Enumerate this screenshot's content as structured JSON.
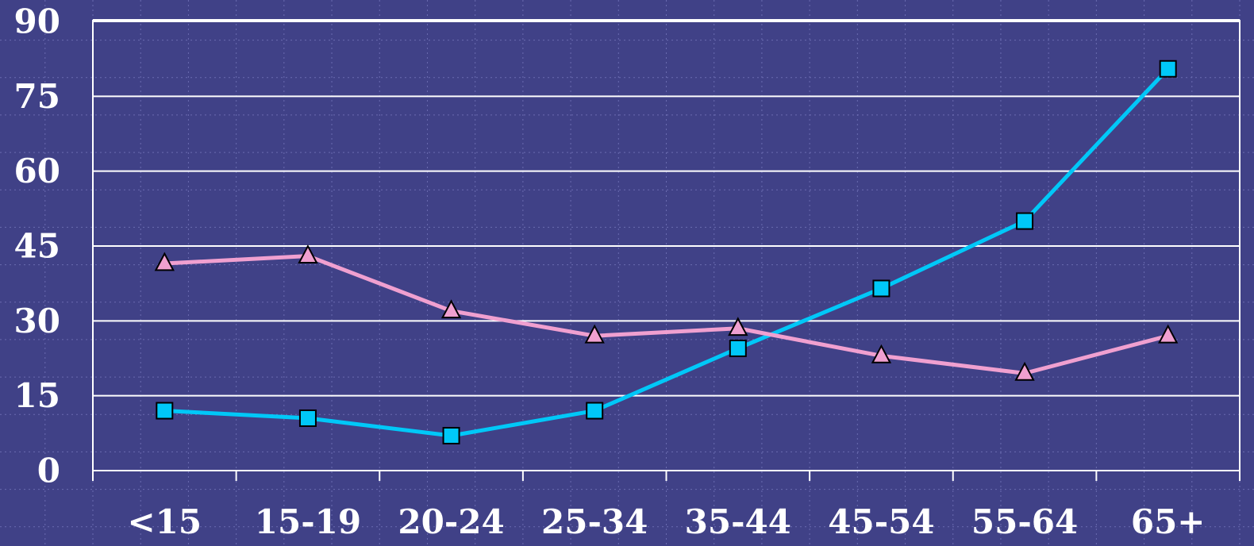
{
  "chart_data": {
    "type": "line",
    "categories": [
      "<15",
      "15-19",
      "20-24",
      "25-34",
      "35-44",
      "45-54",
      "55-64",
      "65+"
    ],
    "ylim": [
      0,
      90
    ],
    "yticks": [
      0,
      15,
      30,
      45,
      60,
      75,
      90
    ],
    "ytick_labels": [
      "0",
      "15",
      "30",
      "45",
      "60",
      "75",
      "90"
    ],
    "grid": true,
    "series": [
      {
        "color": "#00c8f8",
        "marker": "square",
        "values": [
          12,
          10.5,
          7,
          12,
          24.5,
          36.5,
          50,
          80.5
        ]
      },
      {
        "color": "#f0a0d0",
        "marker": "triangle",
        "values": [
          41.5,
          43,
          32,
          27,
          28.5,
          23,
          19.5,
          27
        ]
      }
    ],
    "colors": {
      "background": "#404187",
      "grid": "#ffffff",
      "text": "#ffffff"
    }
  }
}
